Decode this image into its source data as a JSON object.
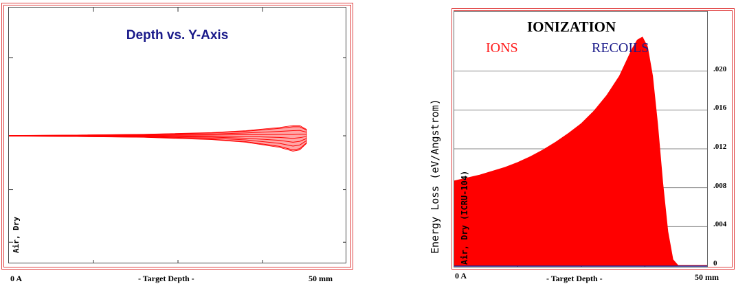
{
  "chart_data": [
    {
      "type": "scatter",
      "title": "Depth vs. Y-Axis",
      "material_label": "Air, Dry",
      "x_tick_labels": [
        "0 A",
        "- Target Depth -",
        "50 mm"
      ],
      "xlim": [
        0,
        50
      ],
      "ylim": [
        -1,
        1
      ],
      "grid": false,
      "legend": "none",
      "ion_color": "#ff0000",
      "title_color": "#1a1a8a",
      "envelope": {
        "x": [
          0,
          10,
          20,
          30,
          35,
          40,
          42,
          43,
          44
        ],
        "y_upper": [
          0.002,
          0.006,
          0.012,
          0.025,
          0.04,
          0.065,
          0.08,
          0.08,
          0.05
        ],
        "y_lower": [
          -0.002,
          -0.006,
          -0.012,
          -0.03,
          -0.05,
          -0.09,
          -0.12,
          -0.11,
          -0.06
        ]
      }
    },
    {
      "type": "area",
      "title": "IONIZATION",
      "legend_labels": [
        "IONS",
        "RECOILS"
      ],
      "legend_colors": [
        "#ff1a1a",
        "#1a1a8a"
      ],
      "ylabel": "Energy Loss (eV/Angstrom)",
      "inner_label": "Air, Dry (ICRU-104)",
      "x_tick_labels": [
        "0 A",
        "- Target Depth -",
        "50 mm"
      ],
      "xlim": [
        0,
        50
      ],
      "ylim": [
        0,
        0.024
      ],
      "yticks": [
        0,
        0.004,
        0.008,
        0.012,
        0.016,
        0.02
      ],
      "ytick_labels": [
        "0",
        ".004",
        ".008",
        ".012",
        ".016",
        ".020"
      ],
      "grid": true,
      "series": [
        {
          "name": "IONS",
          "color": "#ff0000",
          "x": [
            0,
            2.5,
            5,
            7.5,
            10,
            12.5,
            15,
            17.5,
            20,
            22.5,
            25,
            27.5,
            30,
            32.5,
            35,
            36,
            37,
            38,
            39,
            40,
            41,
            42,
            43,
            44,
            45,
            46,
            47,
            48,
            49,
            50
          ],
          "y": [
            0.0087,
            0.009,
            0.0093,
            0.0097,
            0.0101,
            0.0106,
            0.0112,
            0.0119,
            0.0127,
            0.0136,
            0.0146,
            0.0159,
            0.0175,
            0.0195,
            0.0223,
            0.0232,
            0.0235,
            0.0225,
            0.0195,
            0.0145,
            0.0085,
            0.0035,
            0.0006,
            0,
            0,
            0,
            0,
            0,
            0,
            0
          ]
        },
        {
          "name": "RECOILS",
          "color": "#1a1a8a",
          "x": [
            0,
            50
          ],
          "y": [
            0,
            0
          ]
        }
      ]
    }
  ]
}
